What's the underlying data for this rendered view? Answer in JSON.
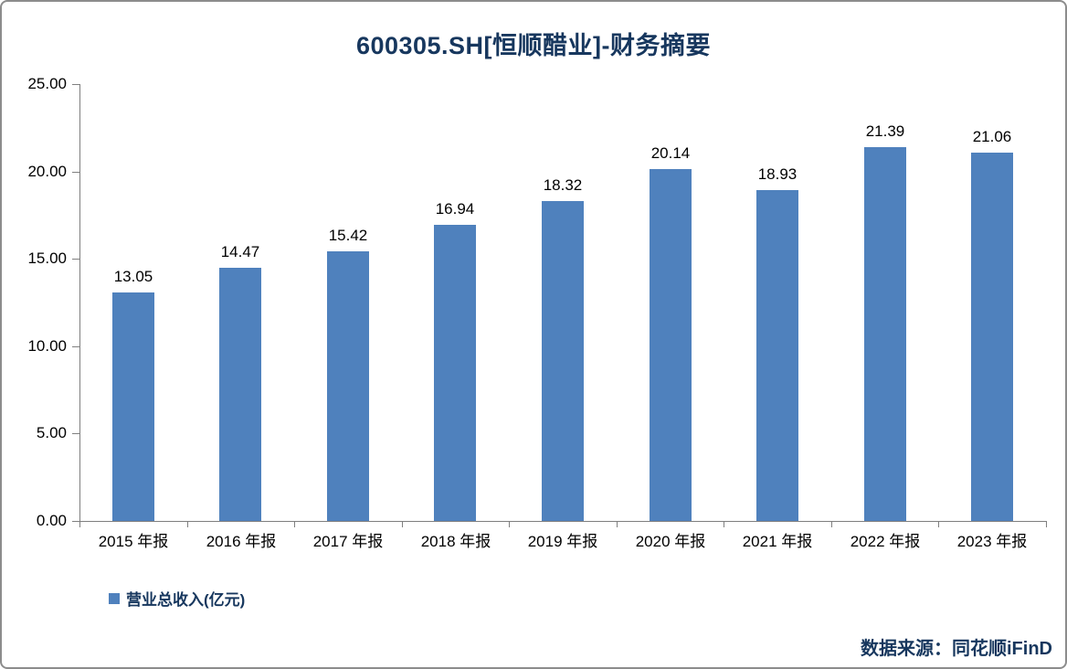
{
  "title": "600305.SH[恒顺醋业]-财务摘要",
  "source": "数据来源：同花顺iFinD",
  "legend": {
    "label": "营业总收入(亿元)",
    "color": "#4F81BD"
  },
  "chart_data": {
    "type": "bar",
    "title": "600305.SH[恒顺醋业]-财务摘要",
    "categories": [
      "2015 年报",
      "2016 年报",
      "2017 年报",
      "2018 年报",
      "2019 年报",
      "2020 年报",
      "2021 年报",
      "2022 年报",
      "2023 年报"
    ],
    "series": [
      {
        "name": "营业总收入(亿元)",
        "values": [
          13.05,
          14.47,
          15.42,
          16.94,
          18.32,
          20.14,
          18.93,
          21.39,
          21.06
        ],
        "color": "#4F81BD"
      }
    ],
    "value_labels": [
      "13.05",
      "14.47",
      "15.42",
      "16.94",
      "18.32",
      "20.14",
      "18.93",
      "21.39",
      "21.06"
    ],
    "xlabel": "",
    "ylabel": "",
    "ylim": [
      0,
      25
    ],
    "ytick_labels": [
      "0.00",
      "5.00",
      "10.00",
      "15.00",
      "20.00",
      "25.00"
    ],
    "grid": false,
    "legend_position": "bottom-left",
    "source": "数据来源：同花顺iFinD"
  },
  "colors": {
    "title_navy": "#17375E",
    "bar_blue": "#4F81BD",
    "axis_grey": "#7f7f7f",
    "frame_grey": "#8c8c8c"
  }
}
